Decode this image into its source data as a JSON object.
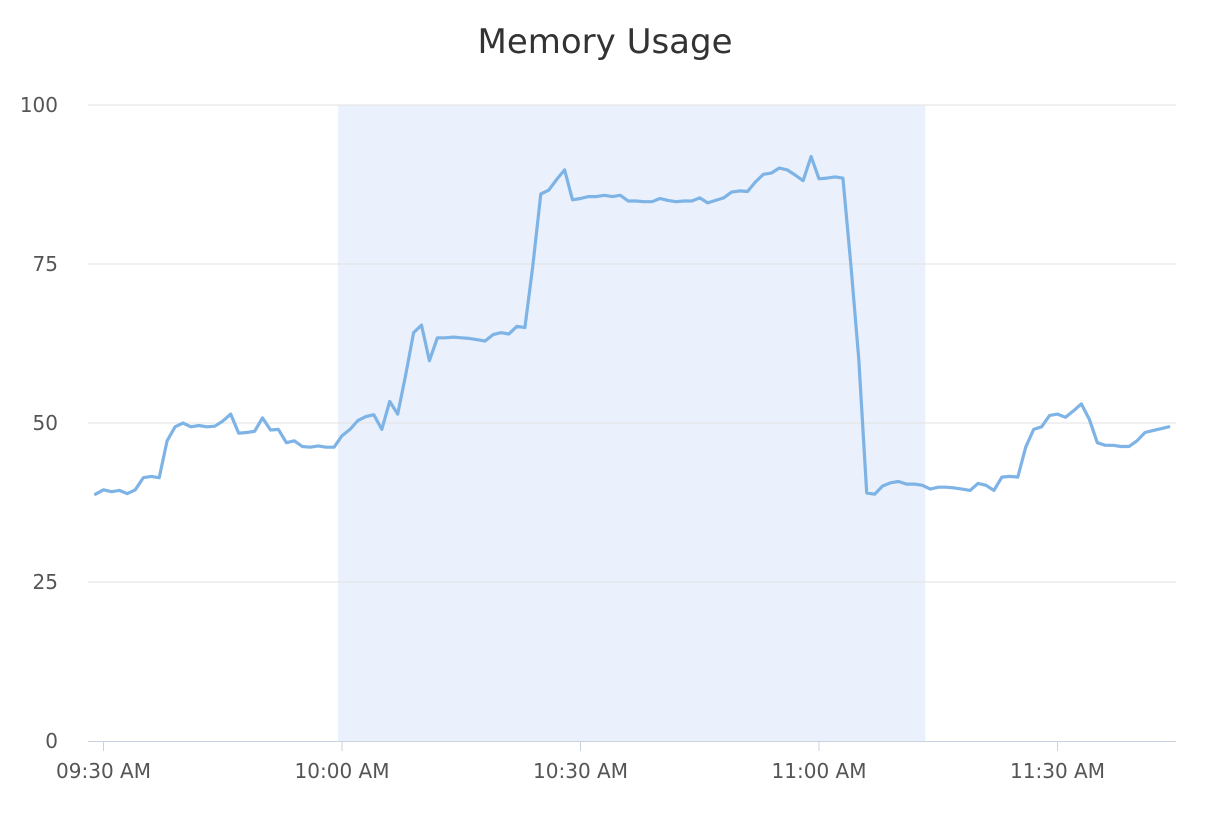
{
  "chart_data": {
    "type": "line",
    "title": "Memory Usage",
    "xlabel": "",
    "ylabel": "",
    "ylim": [
      0,
      100
    ],
    "y_ticks": [
      0,
      25,
      50,
      75,
      100
    ],
    "x_range_minutes": [
      9.3,
      10.1,
      10.5
    ],
    "x_tick_labels": [
      "09:30 AM",
      "10:00 AM",
      "10:30 AM",
      "11:00 AM",
      "11:30 AM"
    ],
    "x_ticks": [
      "09:30",
      "10:00",
      "10:30",
      "11:00",
      "11:30"
    ],
    "x_start": "09:29",
    "x_end": "11:44",
    "grid": true,
    "highlight_band": {
      "from": "09:59",
      "to": "11:13",
      "color": "#eaf1fc"
    },
    "series": [
      {
        "color": "#7eb3e6",
        "points": [
          [
            "09:29",
            38.8
          ],
          [
            "09:30",
            39.5
          ],
          [
            "09:31",
            39.2
          ],
          [
            "09:32",
            39.4
          ],
          [
            "09:33",
            38.9
          ],
          [
            "09:34",
            39.5
          ],
          [
            "09:35",
            41.4
          ],
          [
            "09:36",
            41.6
          ],
          [
            "09:37",
            41.4
          ],
          [
            "09:38",
            47.2
          ],
          [
            "09:39",
            49.4
          ],
          [
            "09:40",
            50.0
          ],
          [
            "09:41",
            49.4
          ],
          [
            "09:42",
            49.6
          ],
          [
            "09:43",
            49.4
          ],
          [
            "09:44",
            49.5
          ],
          [
            "09:45",
            50.3
          ],
          [
            "09:46",
            51.4
          ],
          [
            "09:47",
            48.4
          ],
          [
            "09:48",
            48.5
          ],
          [
            "09:49",
            48.7
          ],
          [
            "09:50",
            50.8
          ],
          [
            "09:51",
            48.9
          ],
          [
            "09:52",
            49.0
          ],
          [
            "09:53",
            46.9
          ],
          [
            "09:54",
            47.2
          ],
          [
            "09:55",
            46.3
          ],
          [
            "09:56",
            46.2
          ],
          [
            "09:57",
            46.4
          ],
          [
            "09:58",
            46.2
          ],
          [
            "09:59",
            46.2
          ],
          [
            "10:00",
            48.0
          ],
          [
            "10:01",
            49.0
          ],
          [
            "10:02",
            50.4
          ],
          [
            "10:03",
            51.0
          ],
          [
            "10:04",
            51.3
          ],
          [
            "10:05",
            49.0
          ],
          [
            "10:06",
            53.4
          ],
          [
            "10:07",
            51.4
          ],
          [
            "10:08",
            57.5
          ],
          [
            "10:09",
            64.2
          ],
          [
            "10:10",
            65.4
          ],
          [
            "10:11",
            59.8
          ],
          [
            "10:12",
            63.4
          ],
          [
            "10:13",
            63.4
          ],
          [
            "10:14",
            63.5
          ],
          [
            "10:15",
            63.4
          ],
          [
            "10:16",
            63.3
          ],
          [
            "10:17",
            63.1
          ],
          [
            "10:18",
            62.9
          ],
          [
            "10:19",
            63.9
          ],
          [
            "10:20",
            64.2
          ],
          [
            "10:21",
            64.0
          ],
          [
            "10:22",
            65.2
          ],
          [
            "10:23",
            65.0
          ],
          [
            "10:24",
            74.7
          ],
          [
            "10:25",
            86.0
          ],
          [
            "10:26",
            86.6
          ],
          [
            "10:27",
            88.3
          ],
          [
            "10:28",
            89.8
          ],
          [
            "10:29",
            85.1
          ],
          [
            "10:30",
            85.3
          ],
          [
            "10:31",
            85.6
          ],
          [
            "10:32",
            85.6
          ],
          [
            "10:33",
            85.8
          ],
          [
            "10:34",
            85.6
          ],
          [
            "10:35",
            85.8
          ],
          [
            "10:36",
            84.9
          ],
          [
            "10:37",
            84.9
          ],
          [
            "10:38",
            84.8
          ],
          [
            "10:39",
            84.8
          ],
          [
            "10:40",
            85.3
          ],
          [
            "10:41",
            85.0
          ],
          [
            "10:42",
            84.8
          ],
          [
            "10:43",
            84.9
          ],
          [
            "10:44",
            84.9
          ],
          [
            "10:45",
            85.4
          ],
          [
            "10:46",
            84.6
          ],
          [
            "10:47",
            85.0
          ],
          [
            "10:48",
            85.4
          ],
          [
            "10:49",
            86.3
          ],
          [
            "10:50",
            86.5
          ],
          [
            "10:51",
            86.4
          ],
          [
            "10:52",
            87.9
          ],
          [
            "10:53",
            89.1
          ],
          [
            "10:54",
            89.3
          ],
          [
            "10:55",
            90.1
          ],
          [
            "10:56",
            89.8
          ],
          [
            "10:57",
            89.0
          ],
          [
            "10:58",
            88.1
          ],
          [
            "10:59",
            91.9
          ],
          [
            "11:00",
            88.4
          ],
          [
            "11:01",
            88.5
          ],
          [
            "11:02",
            88.7
          ],
          [
            "11:03",
            88.5
          ],
          [
            "11:04",
            75.0
          ],
          [
            "11:05",
            60.0
          ],
          [
            "11:06",
            39.0
          ],
          [
            "11:07",
            38.8
          ],
          [
            "11:08",
            40.1
          ],
          [
            "11:09",
            40.6
          ],
          [
            "11:10",
            40.8
          ],
          [
            "11:11",
            40.4
          ],
          [
            "11:12",
            40.4
          ],
          [
            "11:13",
            40.2
          ],
          [
            "11:14",
            39.6
          ],
          [
            "11:15",
            39.9
          ],
          [
            "11:16",
            39.9
          ],
          [
            "11:17",
            39.8
          ],
          [
            "11:18",
            39.6
          ],
          [
            "11:19",
            39.4
          ],
          [
            "11:20",
            40.5
          ],
          [
            "11:21",
            40.2
          ],
          [
            "11:22",
            39.4
          ],
          [
            "11:23",
            41.5
          ],
          [
            "11:24",
            41.6
          ],
          [
            "11:25",
            41.5
          ],
          [
            "11:26",
            46.2
          ],
          [
            "11:27",
            49.0
          ],
          [
            "11:28",
            49.4
          ],
          [
            "11:29",
            51.2
          ],
          [
            "11:30",
            51.4
          ],
          [
            "11:31",
            50.9
          ],
          [
            "11:32",
            51.9
          ],
          [
            "11:33",
            53.0
          ],
          [
            "11:34",
            50.6
          ],
          [
            "11:35",
            46.9
          ],
          [
            "11:36",
            46.5
          ],
          [
            "11:37",
            46.5
          ],
          [
            "11:38",
            46.3
          ],
          [
            "11:39",
            46.3
          ],
          [
            "11:40",
            47.2
          ],
          [
            "11:41",
            48.5
          ],
          [
            "11:42",
            48.8
          ],
          [
            "11:43",
            49.1
          ],
          [
            "11:44",
            49.4
          ]
        ]
      }
    ]
  }
}
